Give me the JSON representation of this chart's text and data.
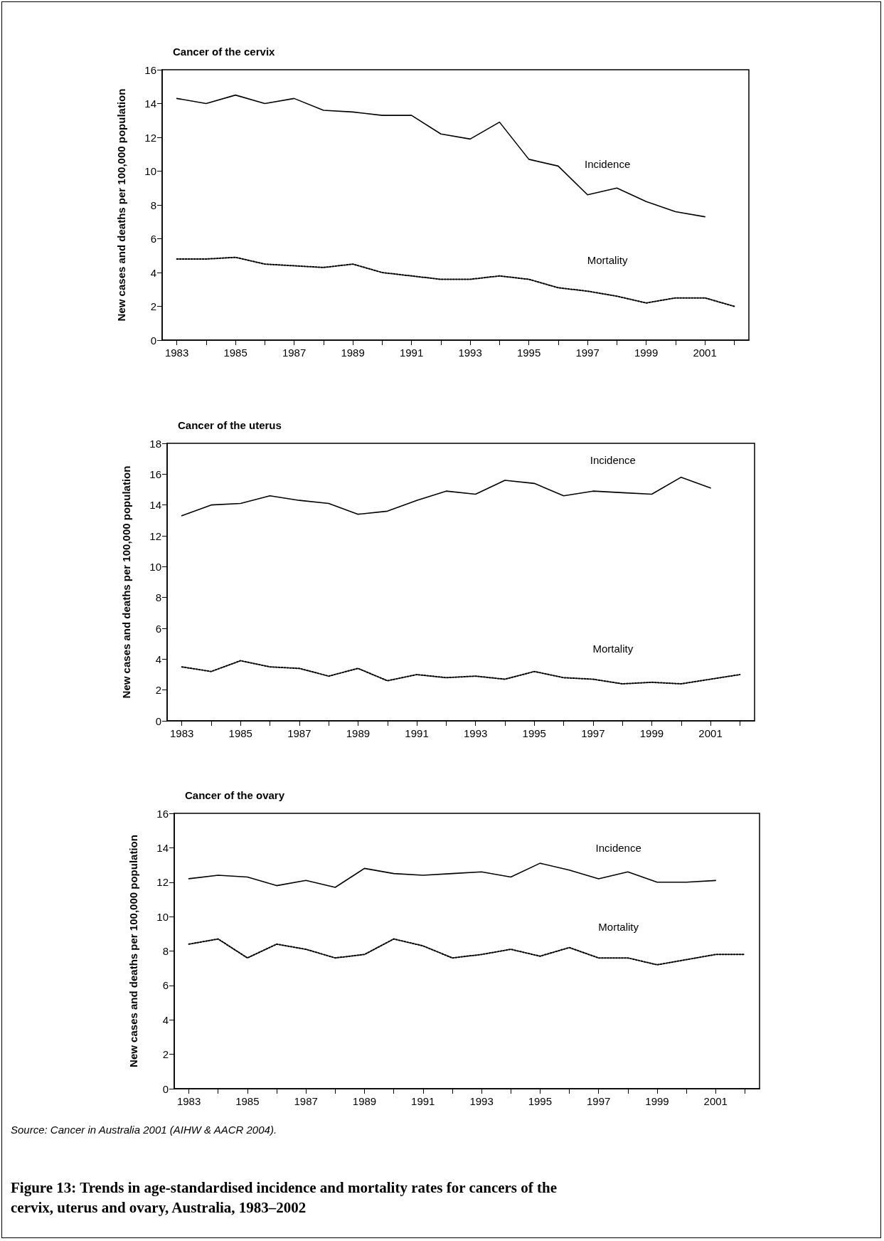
{
  "chart_data": [
    {
      "type": "line",
      "title": "Cancer of the cervix",
      "ylabel": "New cases and deaths per 100,000 population",
      "categories": [
        "1983",
        null,
        "1985",
        null,
        "1987",
        null,
        "1989",
        null,
        "1991",
        null,
        "1993",
        null,
        "1995",
        null,
        "1997",
        null,
        "1999",
        null,
        "2001",
        null
      ],
      "ylim": [
        0,
        16
      ],
      "yticks": [
        0,
        2,
        4,
        6,
        8,
        10,
        12,
        14,
        16
      ],
      "marker": "none",
      "series": [
        {
          "name": "Incidence",
          "color": "#000000",
          "line_style": "solid",
          "values": [
            14.3,
            14.0,
            14.5,
            14.0,
            14.3,
            13.6,
            13.5,
            13.3,
            13.3,
            12.2,
            11.9,
            12.9,
            10.7,
            10.3,
            8.6,
            9.0,
            8.2,
            7.6,
            7.3,
            null
          ]
        },
        {
          "name": "Mortality",
          "color": "#000000",
          "line_style": "dotted",
          "values": [
            4.8,
            4.8,
            4.9,
            4.5,
            4.4,
            4.3,
            4.5,
            4.0,
            3.8,
            3.6,
            3.6,
            3.8,
            3.6,
            3.1,
            2.9,
            2.6,
            2.2,
            2.5,
            2.5,
            2.0
          ]
        }
      ]
    },
    {
      "type": "line",
      "title": "Cancer of the uterus",
      "ylabel": "New cases and deaths per 100,000 population",
      "categories": [
        "1983",
        null,
        "1985",
        null,
        "1987",
        null,
        "1989",
        null,
        "1991",
        null,
        "1993",
        null,
        "1995",
        null,
        "1997",
        null,
        "1999",
        null,
        "2001",
        null
      ],
      "ylim": [
        0,
        18
      ],
      "yticks": [
        0,
        2,
        4,
        6,
        8,
        10,
        12,
        14,
        16,
        18
      ],
      "marker": "none",
      "series": [
        {
          "name": "Incidence",
          "color": "#000000",
          "line_style": "solid",
          "values": [
            13.3,
            14.0,
            14.1,
            14.6,
            14.3,
            14.1,
            13.4,
            13.6,
            14.3,
            14.9,
            14.7,
            15.6,
            15.4,
            14.6,
            14.9,
            14.8,
            14.7,
            15.8,
            15.1,
            null
          ]
        },
        {
          "name": "Mortality",
          "color": "#000000",
          "line_style": "dotted",
          "values": [
            3.5,
            3.2,
            3.9,
            3.5,
            3.4,
            2.9,
            3.4,
            2.6,
            3.0,
            2.8,
            2.9,
            2.7,
            3.2,
            2.8,
            2.7,
            2.4,
            2.5,
            2.4,
            2.7,
            3.0
          ]
        }
      ]
    },
    {
      "type": "line",
      "title": "Cancer of the ovary",
      "ylabel": "New cases and deaths per 100,000 population",
      "categories": [
        "1983",
        null,
        "1985",
        null,
        "1987",
        null,
        "1989",
        null,
        "1991",
        null,
        "1993",
        null,
        "1995",
        null,
        "1997",
        null,
        "1999",
        null,
        "2001",
        null
      ],
      "ylim": [
        0,
        16
      ],
      "yticks": [
        0,
        2,
        4,
        6,
        8,
        10,
        12,
        14,
        16
      ],
      "marker": "none",
      "annotations": [
        "Source: Cancer in Australia 2001 (AIHW & AACR 2004).",
        "Figure 13: Trends in age-standardised incidence and mortality rates for cancers of the cervix, uterus and ovary, Australia, 1983–2002"
      ],
      "series": [
        {
          "name": "Incidence",
          "color": "#000000",
          "line_style": "solid",
          "values": [
            12.2,
            12.4,
            12.3,
            11.8,
            12.1,
            11.7,
            12.8,
            12.5,
            12.4,
            12.5,
            12.6,
            12.3,
            13.1,
            12.7,
            12.2,
            12.6,
            12.0,
            12.0,
            12.1,
            null
          ]
        },
        {
          "name": "Mortality",
          "color": "#000000",
          "line_style": "dotted",
          "values": [
            8.4,
            8.7,
            7.6,
            8.4,
            8.1,
            7.6,
            7.8,
            8.7,
            8.3,
            7.6,
            7.8,
            8.1,
            7.7,
            8.2,
            7.6,
            7.6,
            7.2,
            7.5,
            7.8,
            7.8
          ]
        }
      ]
    }
  ]
}
